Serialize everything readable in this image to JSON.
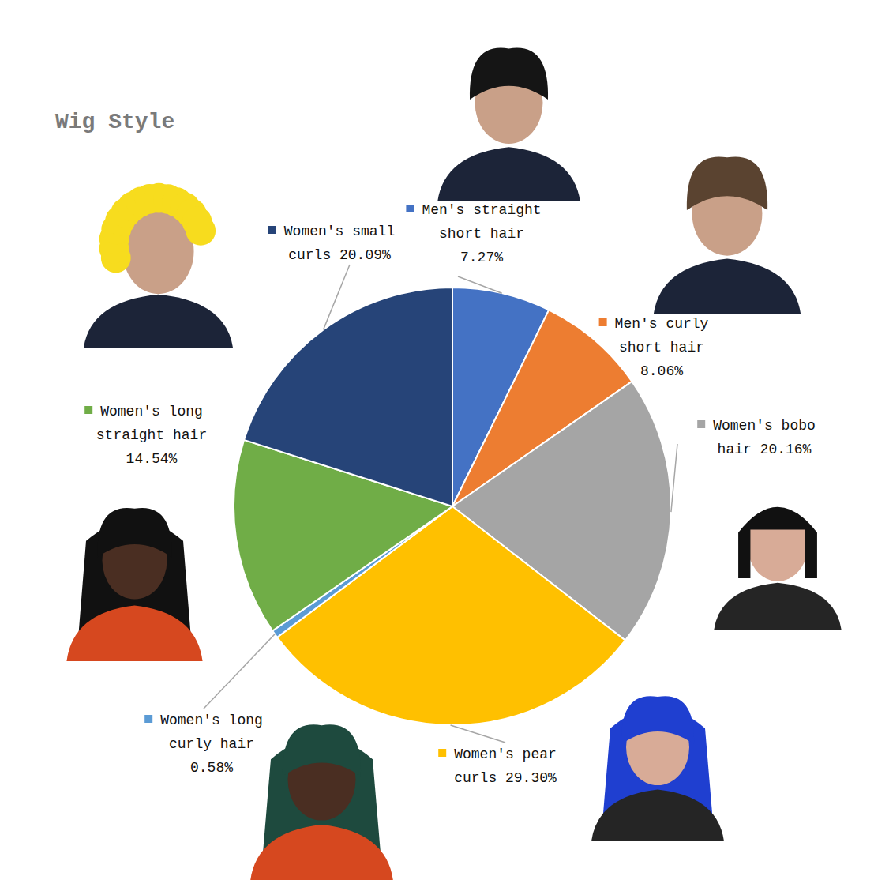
{
  "chart_data": {
    "type": "pie",
    "title": "Wig Style",
    "categories": [
      "Men's straight short hair",
      "Men's curly short hair",
      "Women's bobo hair",
      "Women's pear curls",
      "Women's long curly hair",
      "Women's long straight hair",
      "Women's small curls"
    ],
    "values": [
      7.27,
      8.06,
      20.16,
      29.3,
      0.58,
      14.54,
      20.09
    ],
    "value_labels": [
      "7.27%",
      "8.06%",
      "20.16%",
      "29.30%",
      "0.58%",
      "14.54%",
      "20.09%"
    ],
    "colors": [
      "#4472c4",
      "#ed7d31",
      "#a5a5a5",
      "#ffc000",
      "#5b9bd5",
      "#70ad47",
      "#264478"
    ],
    "data_labels": true
  }
}
